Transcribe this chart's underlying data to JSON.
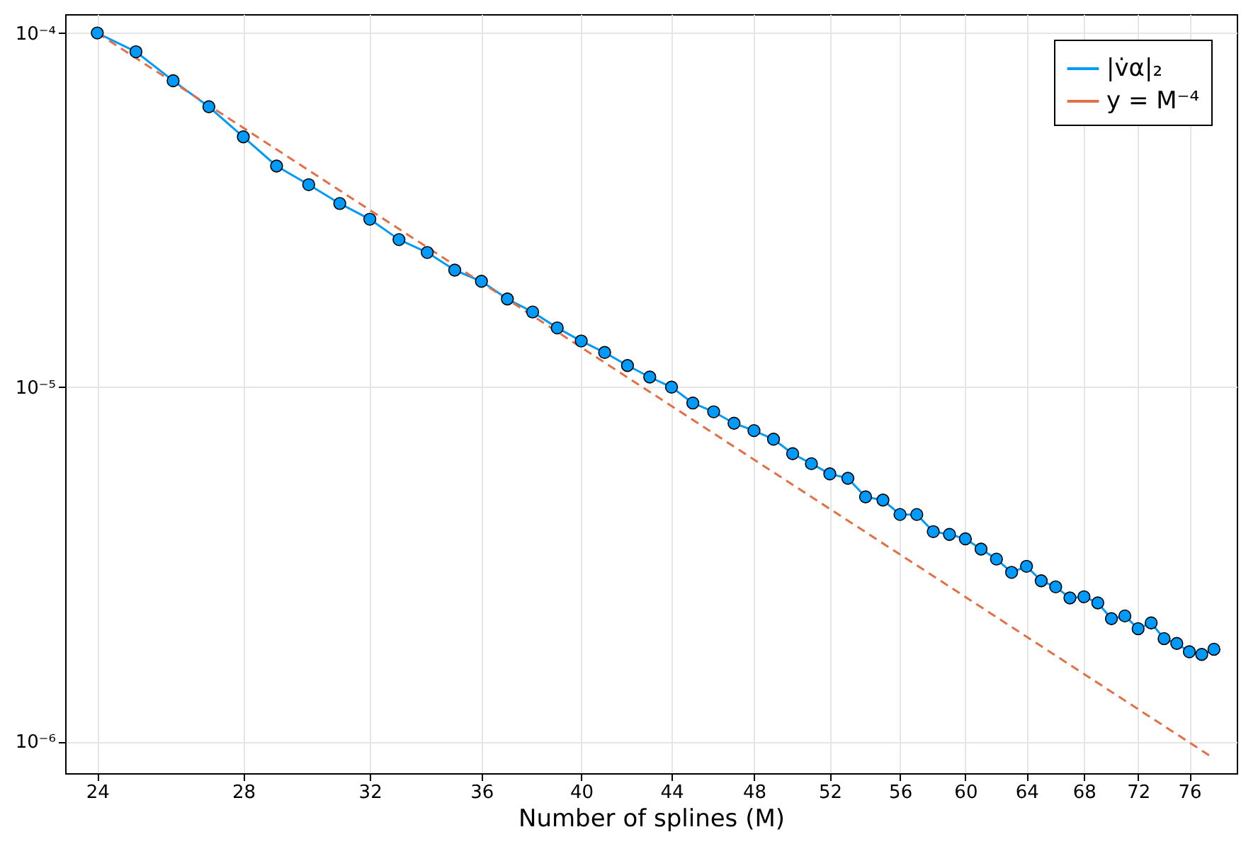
{
  "chart_data": {
    "type": "line",
    "xlabel": "Number of splines (M)",
    "log": "xy",
    "grid": true,
    "legend": "top right",
    "xlim": [
      23.2,
      79.9
    ],
    "ylim": [
      8.13e-07,
      0.000113
    ],
    "xticks": [
      24,
      28,
      32,
      36,
      40,
      44,
      48,
      52,
      56,
      60,
      64,
      68,
      72,
      76
    ],
    "yticks": [
      {
        "value": 0.0001,
        "label": "10⁻⁴"
      },
      {
        "value": 1e-05,
        "label": "10⁻⁵"
      },
      {
        "value": 1e-06,
        "label": "10⁻⁶"
      }
    ],
    "series": [
      {
        "name": "|v̇α|₂",
        "color": "#009afa",
        "marker": "circle",
        "line_style": "solid",
        "x": [
          24,
          25,
          26,
          27,
          28,
          29,
          30,
          31,
          32,
          33,
          34,
          35,
          36,
          37,
          38,
          39,
          40,
          41,
          42,
          43,
          44,
          45,
          46,
          47,
          48,
          49,
          50,
          51,
          52,
          53,
          54,
          55,
          56,
          57,
          58,
          59,
          60,
          61,
          62,
          63,
          64,
          65,
          66,
          67,
          68,
          69,
          70,
          71,
          72,
          73,
          74,
          75,
          76,
          77,
          78
        ],
        "values": [
          0.0001,
          8.85e-05,
          7.33e-05,
          6.19e-05,
          5.09e-05,
          4.21e-05,
          3.73e-05,
          3.3e-05,
          2.98e-05,
          2.61e-05,
          2.4e-05,
          2.14e-05,
          1.99e-05,
          1.774e-05,
          1.63e-05,
          1.47e-05,
          1.35e-05,
          1.253e-05,
          1.151e-05,
          1.068e-05,
          1e-05,
          9.02e-06,
          8.52e-06,
          7.91e-06,
          7.54e-06,
          7.13e-06,
          6.49e-06,
          6.08e-06,
          5.69e-06,
          5.53e-06,
          4.9e-06,
          4.8e-06,
          4.37e-06,
          4.37e-06,
          3.91e-06,
          3.84e-06,
          3.73e-06,
          3.49e-06,
          3.27e-06,
          3e-06,
          3.12e-06,
          2.84e-06,
          2.73e-06,
          2.54e-06,
          2.56e-06,
          2.46e-06,
          2.22e-06,
          2.26e-06,
          2.08e-06,
          2.16e-06,
          1.95e-06,
          1.89e-06,
          1.79e-06,
          1.76e-06,
          1.82e-06
        ]
      },
      {
        "name": "y = M⁻⁴",
        "color": "#e26f46",
        "marker": "none",
        "line_style": "dashed",
        "x": [
          24,
          78
        ],
        "values": [
          0.0001,
          8.95e-07
        ]
      }
    ]
  }
}
